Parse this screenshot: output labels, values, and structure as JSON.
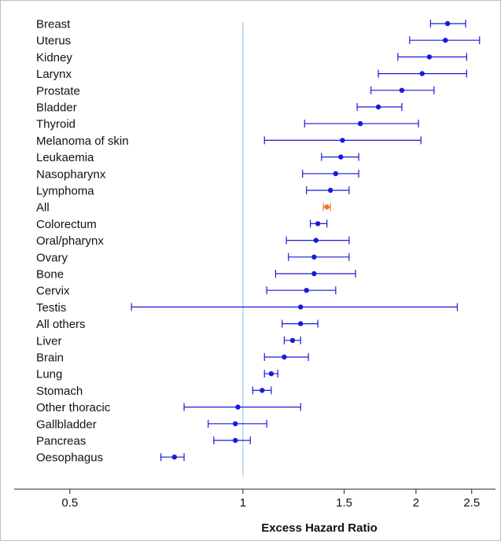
{
  "chart_data": {
    "type": "forest",
    "xlabel": "Excess Hazard Ratio",
    "x_scale": "log",
    "xlim": [
      0.4,
      2.75
    ],
    "x_ticks": [
      0.5,
      1,
      1.5,
      2,
      2.5
    ],
    "x_tick_labels": [
      "0.5",
      "1",
      "1.5",
      "2",
      "2.5"
    ],
    "reference_line": 1,
    "grid": false,
    "colors": {
      "default": "#1a1adb",
      "highlight": "#e8782a",
      "reference": "#a7cde6"
    },
    "rows": [
      {
        "label": "Breast",
        "estimate": 2.27,
        "lower": 2.12,
        "upper": 2.44,
        "color": "default"
      },
      {
        "label": "Uterus",
        "estimate": 2.25,
        "lower": 1.95,
        "upper": 2.58,
        "color": "default"
      },
      {
        "label": "Kidney",
        "estimate": 2.11,
        "lower": 1.86,
        "upper": 2.45,
        "color": "default"
      },
      {
        "label": "Larynx",
        "estimate": 2.05,
        "lower": 1.72,
        "upper": 2.45,
        "color": "default"
      },
      {
        "label": "Prostate",
        "estimate": 1.89,
        "lower": 1.67,
        "upper": 2.15,
        "color": "default"
      },
      {
        "label": "Bladder",
        "estimate": 1.72,
        "lower": 1.58,
        "upper": 1.89,
        "color": "default"
      },
      {
        "label": "Thyroid",
        "estimate": 1.6,
        "lower": 1.28,
        "upper": 2.02,
        "color": "default"
      },
      {
        "label": "Melanoma of skin",
        "estimate": 1.49,
        "lower": 1.09,
        "upper": 2.04,
        "color": "default"
      },
      {
        "label": "Leukaemia",
        "estimate": 1.48,
        "lower": 1.37,
        "upper": 1.59,
        "color": "default"
      },
      {
        "label": "Nasopharynx",
        "estimate": 1.45,
        "lower": 1.27,
        "upper": 1.59,
        "color": "default"
      },
      {
        "label": "Lymphoma",
        "estimate": 1.42,
        "lower": 1.29,
        "upper": 1.53,
        "color": "default"
      },
      {
        "label": "All",
        "estimate": 1.4,
        "lower": 1.38,
        "upper": 1.42,
        "color": "highlight"
      },
      {
        "label": "Colorectum",
        "estimate": 1.35,
        "lower": 1.31,
        "upper": 1.4,
        "color": "default"
      },
      {
        "label": "Oral/pharynx",
        "estimate": 1.34,
        "lower": 1.19,
        "upper": 1.53,
        "color": "default"
      },
      {
        "label": "Ovary",
        "estimate": 1.33,
        "lower": 1.2,
        "upper": 1.53,
        "color": "default"
      },
      {
        "label": "Bone",
        "estimate": 1.33,
        "lower": 1.14,
        "upper": 1.57,
        "color": "default"
      },
      {
        "label": "Cervix",
        "estimate": 1.29,
        "lower": 1.1,
        "upper": 1.45,
        "color": "default"
      },
      {
        "label": "Testis",
        "estimate": 1.26,
        "lower": 0.64,
        "upper": 2.36,
        "color": "default"
      },
      {
        "label": "All others",
        "estimate": 1.26,
        "lower": 1.17,
        "upper": 1.35,
        "color": "default"
      },
      {
        "label": "Liver",
        "estimate": 1.22,
        "lower": 1.18,
        "upper": 1.26,
        "color": "default"
      },
      {
        "label": "Brain",
        "estimate": 1.18,
        "lower": 1.09,
        "upper": 1.3,
        "color": "default"
      },
      {
        "label": "Lung",
        "estimate": 1.12,
        "lower": 1.09,
        "upper": 1.15,
        "color": "default"
      },
      {
        "label": "Stomach",
        "estimate": 1.08,
        "lower": 1.04,
        "upper": 1.12,
        "color": "default"
      },
      {
        "label": "Other thoracic",
        "estimate": 0.98,
        "lower": 0.79,
        "upper": 1.26,
        "color": "default"
      },
      {
        "label": "Gallbladder",
        "estimate": 0.97,
        "lower": 0.87,
        "upper": 1.1,
        "color": "default"
      },
      {
        "label": "Pancreas",
        "estimate": 0.97,
        "lower": 0.89,
        "upper": 1.03,
        "color": "default"
      },
      {
        "label": "Oesophagus",
        "estimate": 0.76,
        "lower": 0.72,
        "upper": 0.79,
        "color": "default"
      }
    ]
  }
}
